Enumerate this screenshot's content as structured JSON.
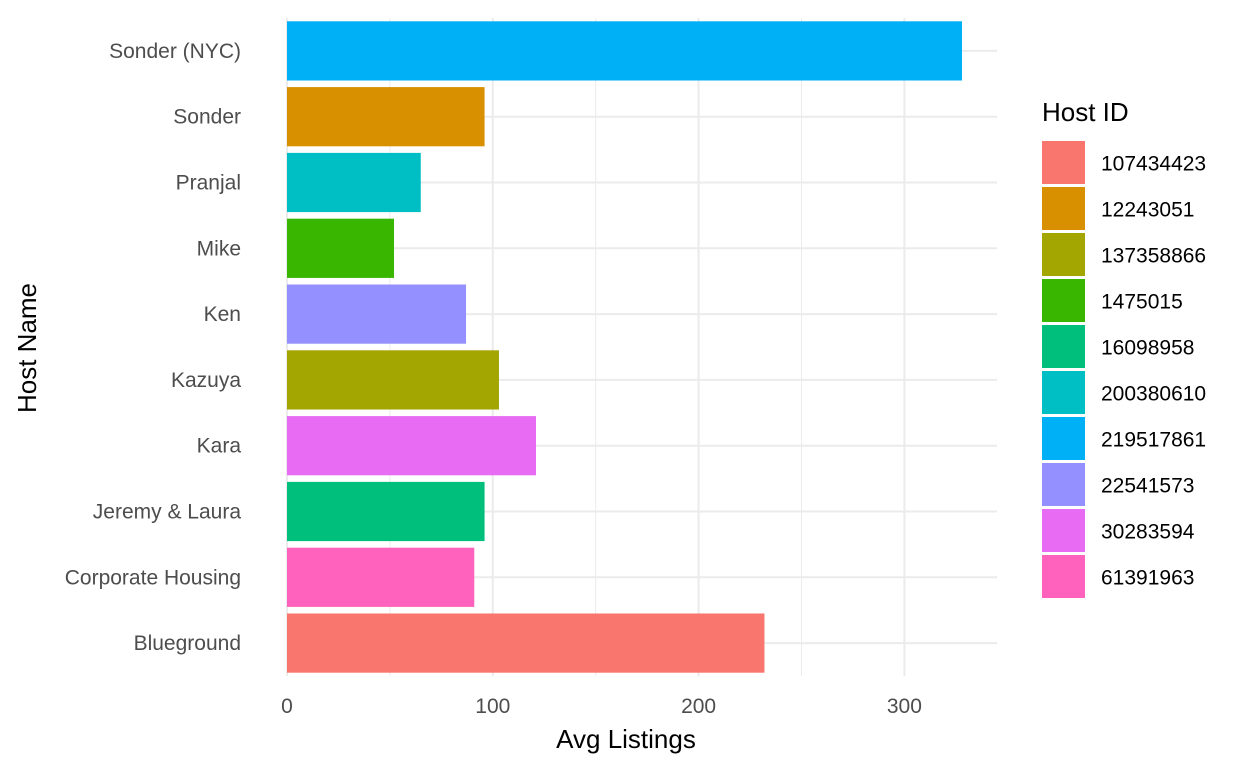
{
  "chart_data": {
    "type": "bar",
    "orientation": "horizontal",
    "xlabel": "Avg Listings",
    "ylabel": "Host Name",
    "xlim": [
      0,
      345
    ],
    "x_ticks": [
      0,
      100,
      200,
      300
    ],
    "grid": true,
    "legend": {
      "title": "Host ID",
      "placement": "right",
      "entries": [
        {
          "label": "107434423",
          "color": "#F8766D"
        },
        {
          "label": "12243051",
          "color": "#D89000"
        },
        {
          "label": "137358866",
          "color": "#A3A500"
        },
        {
          "label": "1475015",
          "color": "#39B600"
        },
        {
          "label": "16098958",
          "color": "#00BF7D"
        },
        {
          "label": "200380610",
          "color": "#00BFC4"
        },
        {
          "label": "219517861",
          "color": "#00B0F6"
        },
        {
          "label": "22541573",
          "color": "#9590FF"
        },
        {
          "label": "30283594",
          "color": "#E76BF3"
        },
        {
          "label": "61391963",
          "color": "#FF62BC"
        }
      ]
    },
    "categories": [
      "Sonder (NYC)",
      "Sonder",
      "Pranjal",
      "Mike",
      "Ken",
      "Kazuya",
      "Kara",
      "Jeremy & Laura",
      "Corporate Housing",
      "Blueground"
    ],
    "values": [
      328,
      96,
      65,
      52,
      87,
      103,
      121,
      96,
      91,
      232
    ],
    "host_ids": [
      "219517861",
      "12243051",
      "200380610",
      "1475015",
      "22541573",
      "137358866",
      "30283594",
      "16098958",
      "61391963",
      "107434423"
    ]
  }
}
